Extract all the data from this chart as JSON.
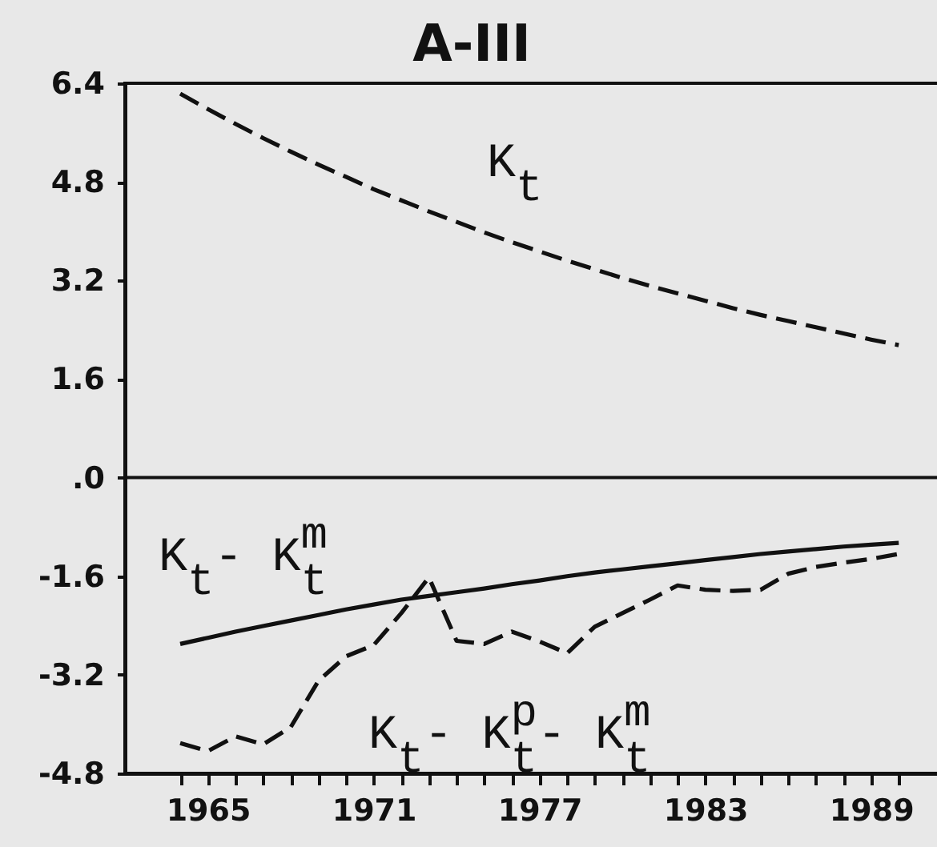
{
  "chart_data": {
    "type": "line",
    "title": "A-III",
    "x": [
      1964,
      1965,
      1966,
      1967,
      1968,
      1969,
      1970,
      1971,
      1972,
      1973,
      1974,
      1975,
      1976,
      1977,
      1978,
      1979,
      1980,
      1981,
      1982,
      1983,
      1984,
      1985,
      1986,
      1987,
      1988,
      1989,
      1990
    ],
    "series": [
      {
        "name": "K$_{t}$",
        "color": "#111111",
        "line_style": "dashed",
        "values": [
          6.23,
          5.98,
          5.74,
          5.51,
          5.29,
          5.08,
          4.88,
          4.68,
          4.5,
          4.32,
          4.15,
          3.98,
          3.82,
          3.67,
          3.52,
          3.38,
          3.24,
          3.11,
          2.99,
          2.87,
          2.75,
          2.64,
          2.54,
          2.44,
          2.34,
          2.24,
          2.15
        ]
      },
      {
        "name": "K$_{t}$- K$_{t}$$^{m}$",
        "color": "#111111",
        "line_style": "solid",
        "values": [
          -2.7,
          -2.6,
          -2.5,
          -2.41,
          -2.32,
          -2.23,
          -2.14,
          -2.06,
          -1.98,
          -1.92,
          -1.86,
          -1.8,
          -1.73,
          -1.67,
          -1.6,
          -1.54,
          -1.49,
          -1.44,
          -1.39,
          -1.34,
          -1.29,
          -1.24,
          -1.2,
          -1.16,
          -1.12,
          -1.09,
          -1.06
        ]
      },
      {
        "name": "K$_{t}$- K$_{t}$$^{p}$- K$_{t}$$^{m}$",
        "color": "#111111",
        "line_style": "dashed",
        "values": [
          -4.31,
          -4.44,
          -4.2,
          -4.33,
          -4.05,
          -3.3,
          -2.9,
          -2.72,
          -2.2,
          -1.62,
          -2.65,
          -2.7,
          -2.5,
          -2.66,
          -2.85,
          -2.42,
          -2.2,
          -1.98,
          -1.75,
          -1.82,
          -1.84,
          -1.82,
          -1.56,
          -1.45,
          -1.38,
          -1.32,
          -1.24
        ]
      }
    ],
    "xlim": [
      1962,
      1991.5
    ],
    "xticks": [
      {
        "value": 1964,
        "label": null
      },
      1965,
      {
        "value": 1966,
        "label": null
      },
      {
        "value": 1967,
        "label": null
      },
      {
        "value": 1968,
        "label": null
      },
      {
        "value": 1969,
        "label": null
      },
      {
        "value": 1970,
        "label": null
      },
      1971,
      {
        "value": 1972,
        "label": null
      },
      {
        "value": 1973,
        "label": null
      },
      {
        "value": 1974,
        "label": null
      },
      {
        "value": 1975,
        "label": null
      },
      {
        "value": 1976,
        "label": null
      },
      1977,
      {
        "value": 1978,
        "label": null
      },
      {
        "value": 1979,
        "label": null
      },
      {
        "value": 1980,
        "label": null
      },
      {
        "value": 1981,
        "label": null
      },
      {
        "value": 1982,
        "label": null
      },
      1983,
      {
        "value": 1984,
        "label": null
      },
      {
        "value": 1985,
        "label": null
      },
      {
        "value": 1986,
        "label": null
      },
      {
        "value": 1987,
        "label": null
      },
      {
        "value": 1988,
        "label": null
      },
      1989,
      {
        "value": 1990,
        "label": null
      }
    ],
    "ylim": [
      -4.8,
      6.4
    ],
    "yticks": [
      -4.8,
      -3.2,
      -1.6,
      {
        "value": 0,
        "label": ".0"
      },
      1.6,
      3.2,
      4.8,
      6.4
    ],
    "ref_lines": [
      {
        "axis": "y",
        "value": 0,
        "color": "#111111"
      }
    ]
  }
}
